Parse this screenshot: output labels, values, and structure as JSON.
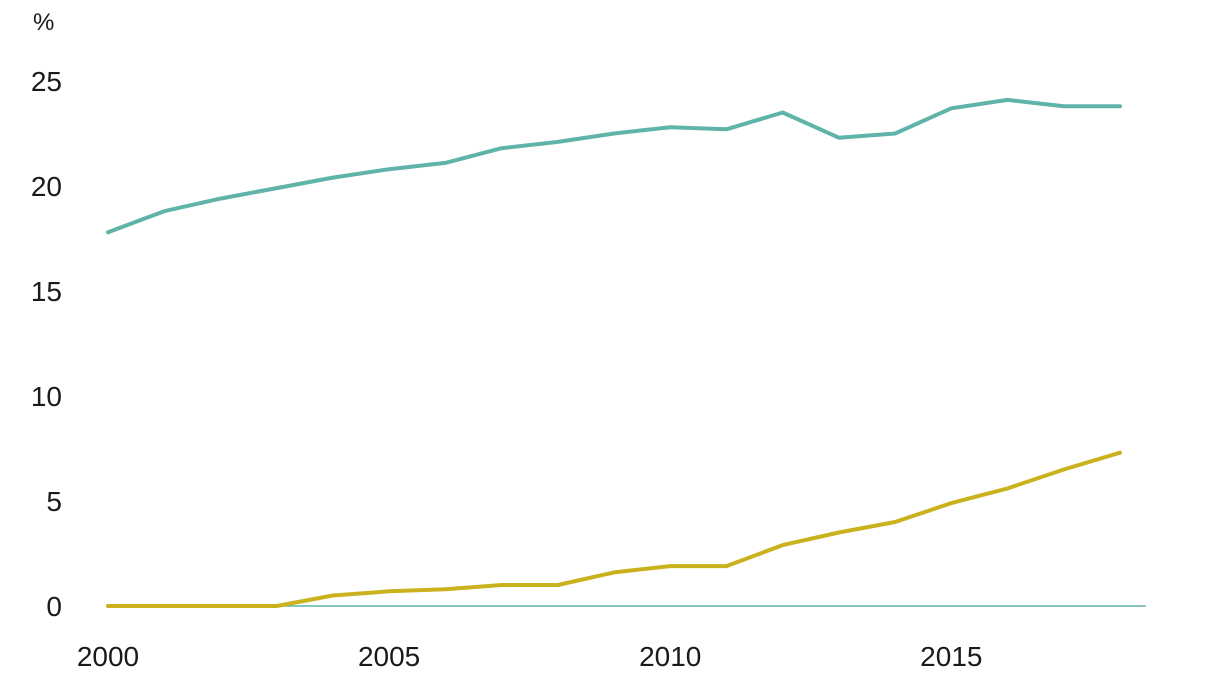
{
  "chart_data": {
    "type": "line",
    "title": "",
    "xlabel": "",
    "ylabel": "",
    "y_unit": "%",
    "xlim": [
      2000,
      2018
    ],
    "ylim": [
      0,
      27
    ],
    "y_ticks": [
      0,
      5,
      10,
      15,
      20,
      25
    ],
    "x_ticks": [
      2000,
      2005,
      2010,
      2015
    ],
    "grid": false,
    "legend": "none",
    "x": [
      2000,
      2001,
      2002,
      2003,
      2004,
      2005,
      2006,
      2007,
      2008,
      2009,
      2010,
      2011,
      2012,
      2013,
      2014,
      2015,
      2016,
      2017,
      2018
    ],
    "series": [
      {
        "color": "#5fb3a8",
        "values": [
          17.8,
          18.8,
          19.4,
          19.9,
          20.4,
          20.8,
          21.1,
          21.8,
          22.1,
          22.5,
          22.8,
          22.7,
          23.5,
          22.3,
          22.5,
          23.7,
          24.1,
          23.8,
          23.8
        ]
      },
      {
        "color": "#c9b21d",
        "values": [
          0.0,
          0.0,
          0.0,
          0.0,
          0.5,
          0.7,
          0.8,
          1.0,
          1.0,
          1.6,
          1.9,
          1.9,
          2.9,
          3.5,
          4.0,
          4.9,
          5.6,
          6.5,
          7.3
        ]
      }
    ],
    "axis_color": "#5fb3a8"
  }
}
